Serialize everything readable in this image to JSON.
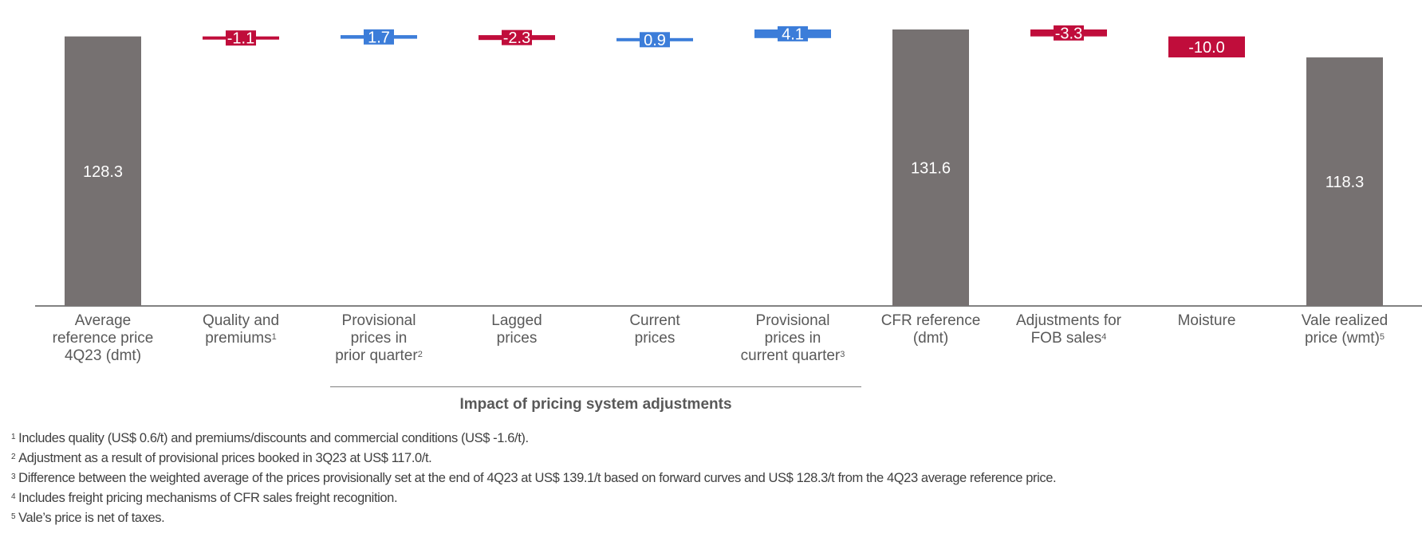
{
  "chart_data": {
    "type": "waterfall",
    "categories": [
      {
        "lines": [
          "Average",
          "reference price",
          "4Q23 (dmt)"
        ],
        "sup": ""
      },
      {
        "lines": [
          "Quality and",
          "premiums"
        ],
        "sup": "1"
      },
      {
        "lines": [
          "Provisional",
          "prices in",
          "prior quarter"
        ],
        "sup": "2"
      },
      {
        "lines": [
          "Lagged",
          "prices"
        ],
        "sup": ""
      },
      {
        "lines": [
          "Current",
          "prices"
        ],
        "sup": ""
      },
      {
        "lines": [
          "Provisional",
          "prices in",
          "current quarter"
        ],
        "sup": "3"
      },
      {
        "lines": [
          "CFR reference",
          "(dmt)"
        ],
        "sup": ""
      },
      {
        "lines": [
          "Adjustments  for",
          "FOB sales"
        ],
        "sup": "4"
      },
      {
        "lines": [
          "Moisture"
        ],
        "sup": ""
      },
      {
        "lines": [
          "Vale realized",
          "price (wmt)"
        ],
        "sup": "5"
      }
    ],
    "bars": [
      {
        "kind": "total",
        "value": 128.3,
        "label": "128.3"
      },
      {
        "kind": "delta",
        "value": -1.1,
        "label": "-1.1"
      },
      {
        "kind": "delta",
        "value": 1.7,
        "label": "1.7"
      },
      {
        "kind": "delta",
        "value": -2.3,
        "label": "-2.3"
      },
      {
        "kind": "delta",
        "value": 0.9,
        "label": "0.9"
      },
      {
        "kind": "delta",
        "value": 4.1,
        "label": "4.1"
      },
      {
        "kind": "total",
        "value": 131.6,
        "label": "131.6"
      },
      {
        "kind": "delta",
        "value": -3.3,
        "label": "-3.3"
      },
      {
        "kind": "delta",
        "value": -10.0,
        "label": "-10.0"
      },
      {
        "kind": "total",
        "value": 118.3,
        "label": "118.3"
      }
    ],
    "group": {
      "label": "Impact of pricing system adjustments",
      "from_index": 2,
      "to_index": 5
    },
    "ylim": [
      0,
      131.6
    ],
    "colors": {
      "total": "#767171",
      "increase": "#3C7DD9",
      "decrease": "#C00D3B",
      "axis": "#595959",
      "text_light": "#ffffff"
    }
  },
  "footnotes": [
    {
      "num": "1",
      "text": "Includes quality (US$ 0.6/t) and premiums/discounts and commercial conditions (US$ -1.6/t)."
    },
    {
      "num": "2",
      "text": "Adjustment as a result of provisional prices booked in 3Q23 at US$ 117.0/t."
    },
    {
      "num": "3",
      "text": "Difference between the weighted average of the prices provisionally set at the end of 4Q23 at US$ 139.1/t based on forward curves and US$ 128.3/t from the 4Q23 average reference price."
    },
    {
      "num": "4",
      "text": "Includes freight pricing mechanisms of CFR sales freight recognition."
    },
    {
      "num": "5",
      "text": "Vale’s price is net of taxes."
    }
  ]
}
